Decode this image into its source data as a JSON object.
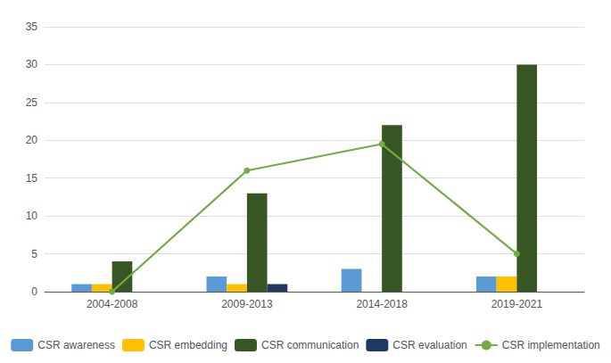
{
  "chart_data": {
    "type": "bar",
    "categories": [
      "2004-2008",
      "2009-2013",
      "2014-2018",
      "2019-2021"
    ],
    "series": [
      {
        "name": "CSR awareness",
        "color": "#5B9BD5",
        "values": [
          1,
          2,
          3,
          2
        ]
      },
      {
        "name": "CSR embedding",
        "color": "#FFC000",
        "values": [
          1,
          1,
          0,
          2
        ]
      },
      {
        "name": "CSR communication",
        "color": "#375623",
        "values": [
          4,
          13,
          22,
          30
        ]
      },
      {
        "name": "CSR evaluation",
        "color": "#203864",
        "values": [
          0,
          1,
          0,
          0
        ]
      },
      {
        "name": "CSR implementation",
        "color": "#70AD47",
        "type": "line",
        "marker": "circle",
        "values": [
          0,
          16,
          19.5,
          5
        ]
      }
    ],
    "ylim": [
      0,
      35
    ],
    "yticks": [
      0,
      5,
      10,
      15,
      20,
      25,
      30,
      35
    ],
    "grid": true,
    "legend": "bottom"
  }
}
